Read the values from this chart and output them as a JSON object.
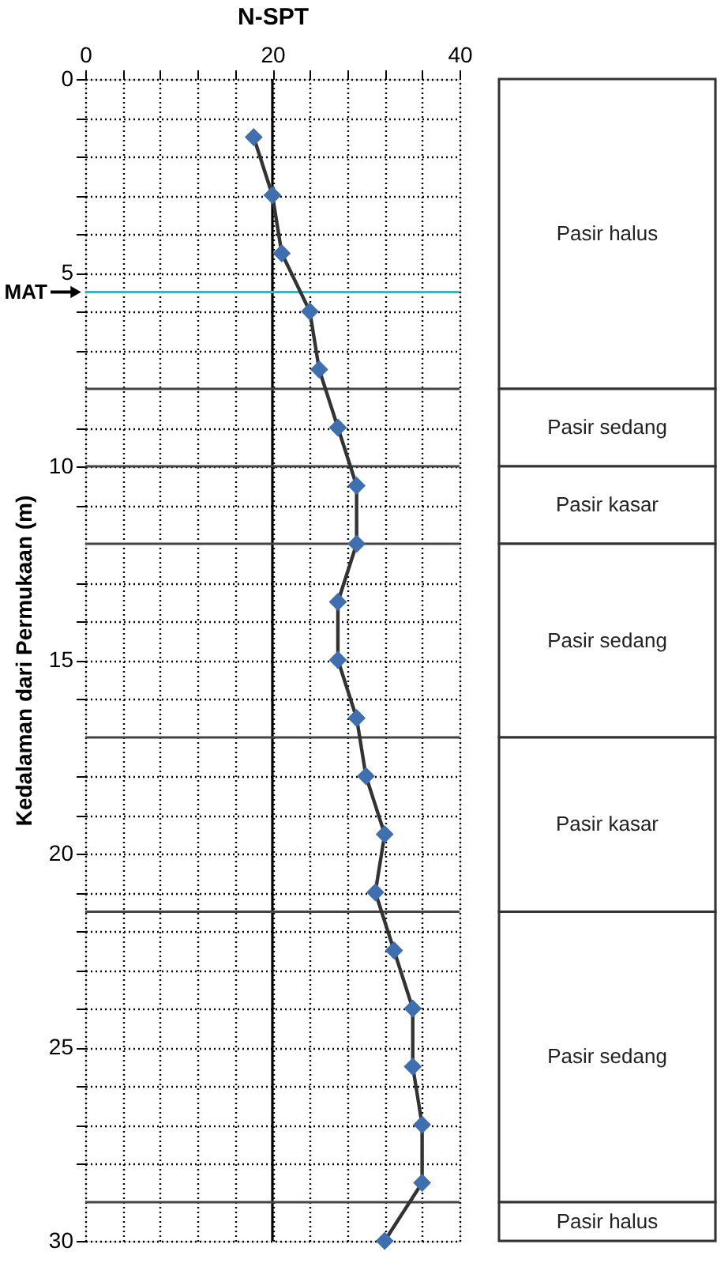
{
  "chart_data": [
    {
      "type": "line",
      "title": "N-SPT",
      "ylabel": "Kedalaman dari Permukaan (m)",
      "x": [
        18,
        20,
        21,
        24,
        25,
        27,
        29,
        29,
        27,
        27,
        29,
        30,
        32,
        31,
        33,
        35,
        35,
        36,
        36,
        32
      ],
      "series": [
        {
          "type": "line",
          "marker": "none",
          "color": "#333333",
          "values": [
            1.5,
            3,
            4.5,
            6,
            7.5,
            9,
            10.5,
            12,
            13.5,
            15,
            16.5,
            18,
            19.5,
            21,
            22.5,
            24,
            25.5,
            27,
            28.5,
            30
          ]
        },
        {
          "type": "scatter",
          "color": "#3f6fae",
          "values": [
            1.5,
            3,
            4.5,
            6,
            7.5,
            9,
            10.5,
            12,
            13.5,
            15,
            16.5,
            18,
            19.5,
            21,
            22.5,
            24,
            25.5,
            27,
            28.5,
            30
          ]
        }
      ],
      "marker": "diamond",
      "line_style": "solid",
      "grid": true,
      "xlim": [
        0,
        40
      ],
      "xticks": [
        0,
        {
          "value": 4,
          "label": null
        },
        {
          "value": 8,
          "label": null
        },
        {
          "value": 12,
          "label": null
        },
        {
          "value": 16,
          "label": null
        },
        20,
        {
          "value": 24,
          "label": null
        },
        {
          "value": 28,
          "label": null
        },
        {
          "value": 32,
          "label": null
        },
        {
          "value": 36,
          "label": null
        },
        40
      ],
      "ylim": [
        30,
        0
      ],
      "yticks": [
        0,
        {
          "value": 1,
          "label": null
        },
        {
          "value": 2,
          "label": null
        },
        {
          "value": 3,
          "label": null
        },
        {
          "value": 4,
          "label": null
        },
        5,
        {
          "value": 6,
          "label": null
        },
        {
          "value": 7,
          "label": null
        },
        {
          "value": 9,
          "label": null
        },
        10,
        {
          "value": 11,
          "label": null
        },
        {
          "value": 13,
          "label": null
        },
        {
          "value": 14,
          "label": null
        },
        15,
        {
          "value": 16,
          "label": null
        },
        {
          "value": 18,
          "label": null
        },
        {
          "value": 19,
          "label": null
        },
        20,
        {
          "value": 21,
          "label": null
        },
        {
          "value": 22,
          "label": null
        },
        {
          "value": 23,
          "label": null
        },
        {
          "value": 24,
          "label": null
        },
        25,
        {
          "value": 26,
          "label": null
        },
        {
          "value": 27,
          "label": null
        },
        {
          "value": 28,
          "label": null
        },
        30
      ],
      "ref_lines": [
        {
          "axis": "x",
          "value": 20,
          "label": null,
          "color": "#000000",
          "line_style": "solid"
        },
        {
          "axis": "y",
          "value": 5.5,
          "label": "MAT",
          "color": "#3fb3c0",
          "line_style": "solid"
        },
        {
          "axis": "y",
          "value": 8,
          "label": null,
          "color": "#444444",
          "line_style": "solid"
        },
        {
          "axis": "y",
          "value": 10,
          "label": null,
          "color": "#444444",
          "line_style": "solid"
        },
        {
          "axis": "y",
          "value": 12,
          "label": null,
          "color": "#444444",
          "line_style": "solid"
        },
        {
          "axis": "y",
          "value": 17,
          "label": null,
          "color": "#444444",
          "line_style": "solid"
        },
        {
          "axis": "y",
          "value": 21.5,
          "label": null,
          "color": "#444444",
          "line_style": "solid"
        },
        {
          "axis": "y",
          "value": 29,
          "label": null,
          "color": "#444444",
          "line_style": "solid"
        }
      ]
    },
    {
      "type": "bar",
      "stacked": true,
      "categories": [
        null
      ],
      "ylim": [
        30,
        0
      ],
      "tick_labels": false,
      "series": [
        {
          "name": "Pasir halus",
          "color": "#ffffff",
          "values": [
            8
          ]
        },
        {
          "name": "Pasir sedang",
          "color": "#ffffff",
          "values": [
            2
          ]
        },
        {
          "name": "Pasir kasar",
          "color": "#ffffff",
          "values": [
            2
          ]
        },
        {
          "name": "Pasir sedang",
          "color": "#ffffff",
          "values": [
            5
          ]
        },
        {
          "name": "Pasir kasar",
          "color": "#ffffff",
          "values": [
            4.5
          ]
        },
        {
          "name": "Pasir sedang",
          "color": "#ffffff",
          "values": [
            7.5
          ]
        },
        {
          "name": "Pasir halus",
          "color": "#ffffff",
          "values": [
            1
          ]
        }
      ]
    }
  ]
}
